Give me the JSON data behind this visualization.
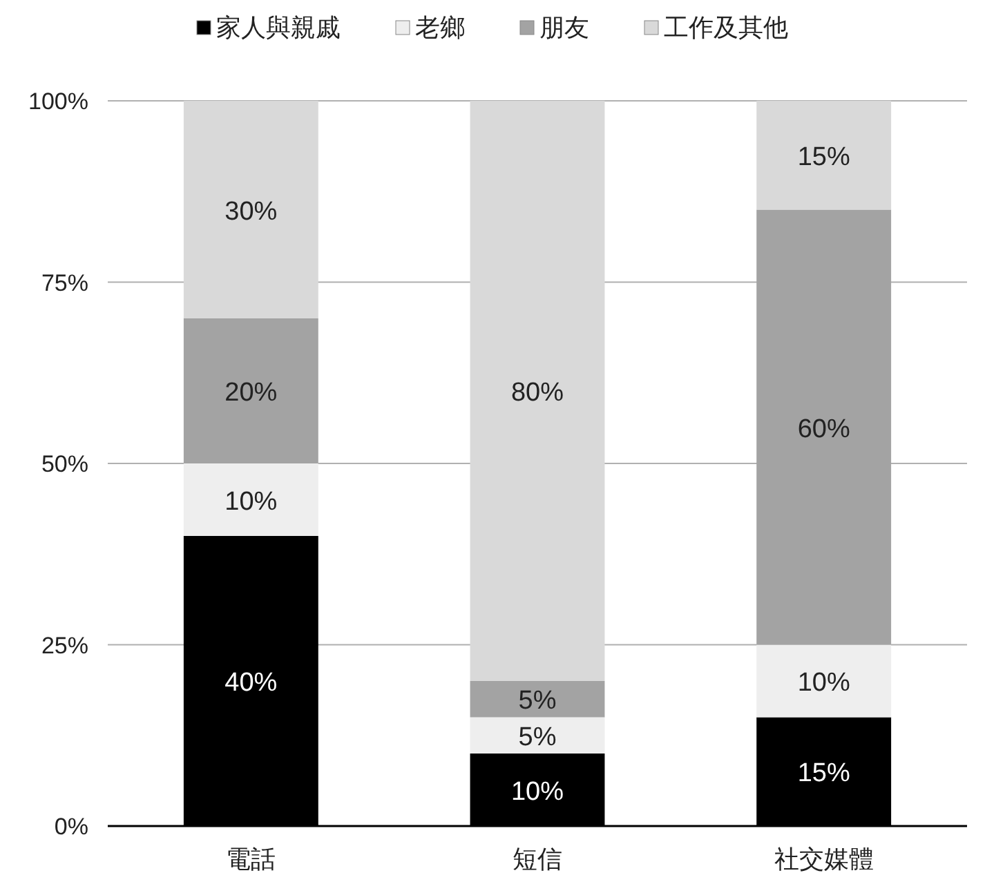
{
  "chart_data": {
    "type": "bar",
    "stacked": true,
    "categories": [
      "電話",
      "短信",
      "社交媒體"
    ],
    "series": [
      {
        "name": "家人與親戚",
        "color": "#000000",
        "values": [
          40,
          10,
          15
        ],
        "value_labels": [
          "40%",
          "10%",
          "15%"
        ]
      },
      {
        "name": "老鄉",
        "color": "#eeeeee",
        "values": [
          10,
          5,
          10
        ],
        "value_labels": [
          "10%",
          "5%",
          "10%"
        ]
      },
      {
        "name": "朋友",
        "color": "#a3a3a3",
        "values": [
          20,
          5,
          60
        ],
        "value_labels": [
          "20%",
          "5%",
          "60%"
        ]
      },
      {
        "name": "工作及其他",
        "color": "#d9d9d9",
        "values": [
          30,
          80,
          15
        ],
        "value_labels": [
          "30%",
          "80%",
          "15%"
        ]
      }
    ],
    "ylim": [
      0,
      100
    ],
    "yticks": [
      {
        "value": 0,
        "label": "0%"
      },
      {
        "value": 25,
        "label": "25%"
      },
      {
        "value": 50,
        "label": "50%"
      },
      {
        "value": 75,
        "label": "75%"
      },
      {
        "value": 100,
        "label": "100%"
      }
    ],
    "grid": "y",
    "legend": "top"
  }
}
